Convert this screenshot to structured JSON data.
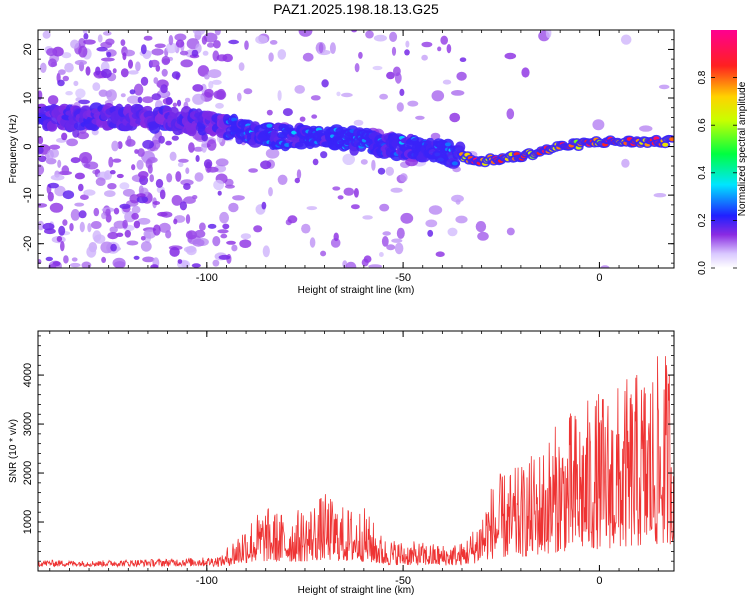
{
  "title": "PAZ1.2025.198.18.13.G25",
  "chart_data": [
    {
      "type": "heatmap",
      "xlabel": "Height of straight line (km)",
      "ylabel": "Frequency (Hz)",
      "xlim": [
        -143,
        19
      ],
      "ylim": [
        -25,
        24
      ],
      "xticks": [
        -100,
        -50,
        0
      ],
      "yticks": [
        -20,
        -10,
        0,
        10,
        20
      ],
      "colorbar": {
        "label": "Normalized spectral amplitude",
        "range": [
          0,
          1
        ],
        "ticks": [
          0.0,
          0.2,
          0.4,
          0.6,
          0.8
        ],
        "colormap": "white-purple-blue-cyan-green-yellow-red-magenta"
      },
      "ridge": {
        "description_points_x": [
          -143,
          -120,
          -100,
          -90,
          -80,
          -70,
          -60,
          -50,
          -40,
          -35,
          -30,
          -20,
          -10,
          0,
          10,
          19
        ],
        "description_points_y": [
          6,
          6,
          5,
          3,
          2,
          2,
          1,
          0,
          -1,
          -2,
          -3,
          -2,
          0,
          1,
          1,
          1
        ]
      },
      "grid": false,
      "legend": "none"
    },
    {
      "type": "line",
      "xlabel": "Height of straight line (km)",
      "ylabel": "SNR (10 * v/v)",
      "xlim": [
        -143,
        19
      ],
      "ylim": [
        0,
        4900
      ],
      "xticks": [
        -100,
        -50,
        0
      ],
      "yticks": [
        1000,
        2000,
        3000,
        4000
      ],
      "series": [
        {
          "color": "#ee3333",
          "envelope_x": [
            -143,
            -130,
            -120,
            -110,
            -100,
            -95,
            -90,
            -85,
            -80,
            -75,
            -70,
            -65,
            -60,
            -55,
            -50,
            -45,
            -40,
            -35,
            -32,
            -28,
            -25,
            -20,
            -15,
            -10,
            -5,
            0,
            5,
            10,
            15,
            19
          ],
          "envelope_y": [
            200,
            180,
            200,
            220,
            250,
            300,
            700,
            900,
            800,
            900,
            1100,
            900,
            900,
            450,
            400,
            380,
            350,
            380,
            600,
            1200,
            1400,
            1500,
            1800,
            2200,
            2400,
            2600,
            2700,
            2900,
            3100,
            3300
          ]
        }
      ],
      "grid": false,
      "legend": "none"
    }
  ]
}
